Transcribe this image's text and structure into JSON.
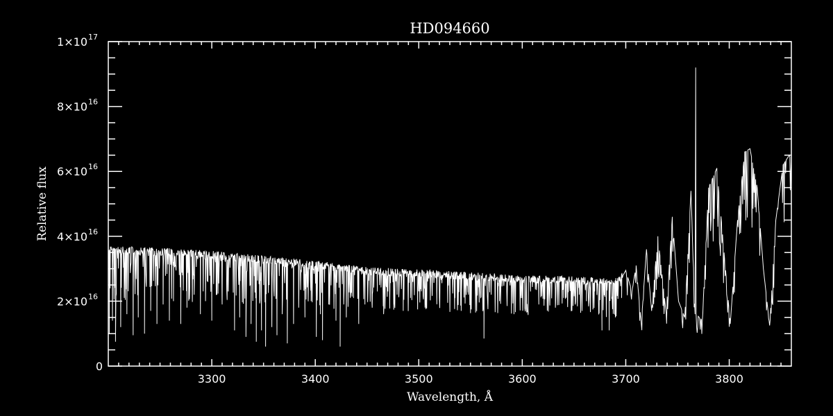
{
  "chart_data": {
    "type": "line",
    "title": "HD094660",
    "xlabel": "Wavelength, Å",
    "ylabel": "Relative flux",
    "xlim": [
      3200,
      3860
    ],
    "ylim": [
      0,
      1e+17
    ],
    "x_ticks": [
      3300,
      3400,
      3500,
      3600,
      3700,
      3800
    ],
    "x_tick_labels": [
      "3300",
      "3400",
      "3500",
      "3600",
      "3700",
      "3800"
    ],
    "y_ticks": [
      0,
      2e+16,
      4e+16,
      6e+16,
      8e+16,
      1e+17
    ],
    "y_tick_labels": [
      {
        "mant": "0",
        "exp": ""
      },
      {
        "mant": "2×10",
        "exp": "16"
      },
      {
        "mant": "4×10",
        "exp": "16"
      },
      {
        "mant": "6×10",
        "exp": "16"
      },
      {
        "mant": "8×10",
        "exp": "16"
      },
      {
        "mant": "1×10",
        "exp": "17"
      }
    ],
    "grid": false,
    "colors": {
      "background": "#000000",
      "line": "#ffffff",
      "axes": "#ffffff"
    },
    "flux_unit": 1e+16,
    "envelope": [
      [
        3200,
        3.7
      ],
      [
        3250,
        3.65
      ],
      [
        3300,
        3.55
      ],
      [
        3350,
        3.4
      ],
      [
        3400,
        3.25
      ],
      [
        3450,
        3.05
      ],
      [
        3500,
        2.98
      ],
      [
        3550,
        2.9
      ],
      [
        3600,
        2.8
      ],
      [
        3650,
        2.78
      ],
      [
        3688,
        2.7
      ],
      [
        3700,
        2.95
      ],
      [
        3706,
        2.3
      ],
      [
        3710,
        3.1
      ],
      [
        3715,
        1.3
      ],
      [
        3720,
        3.6
      ],
      [
        3725,
        1.7
      ],
      [
        3731,
        4.0
      ],
      [
        3739,
        1.65
      ],
      [
        3745,
        4.6
      ],
      [
        3751,
        2.0
      ],
      [
        3757,
        1.5
      ],
      [
        3763,
        5.4
      ],
      [
        3767,
        1.6
      ],
      [
        3767.6,
        9.2
      ],
      [
        3768,
        1.6
      ],
      [
        3774,
        1.4
      ],
      [
        3780,
        5.5
      ],
      [
        3788,
        6.1
      ],
      [
        3795,
        3.5
      ],
      [
        3801,
        1.3
      ],
      [
        3808,
        4.5
      ],
      [
        3815,
        6.6
      ],
      [
        3820,
        6.7
      ],
      [
        3827,
        5.5
      ],
      [
        3833,
        3.0
      ],
      [
        3839,
        1.25
      ],
      [
        3845,
        4.5
      ],
      [
        3852,
        6.2
      ],
      [
        3858,
        6.5
      ],
      [
        3860,
        6.3
      ]
    ],
    "absorption_lines": [
      [
        3201,
        1.0
      ],
      [
        3204,
        1.4
      ],
      [
        3207,
        0.75
      ],
      [
        3212,
        1.2
      ],
      [
        3218,
        1.6
      ],
      [
        3224,
        0.95
      ],
      [
        3229,
        1.5
      ],
      [
        3235,
        1.0
      ],
      [
        3241,
        1.7
      ],
      [
        3247,
        1.3
      ],
      [
        3253,
        1.9
      ],
      [
        3259,
        1.4
      ],
      [
        3263,
        2.0
      ],
      [
        3270,
        1.3
      ],
      [
        3276,
        1.8
      ],
      [
        3283,
        2.2
      ],
      [
        3289,
        1.6
      ],
      [
        3294,
        2.0
      ],
      [
        3300,
        1.4
      ],
      [
        3305,
        2.2
      ],
      [
        3310,
        1.9
      ],
      [
        3316,
        2.3
      ],
      [
        3322,
        1.1
      ],
      [
        3327,
        1.5
      ],
      [
        3333,
        0.9
      ],
      [
        3338,
        1.3
      ],
      [
        3343,
        0.75
      ],
      [
        3348,
        1.1
      ],
      [
        3352,
        0.6
      ],
      [
        3358,
        1.2
      ],
      [
        3363,
        0.95
      ],
      [
        3368,
        1.6
      ],
      [
        3373,
        0.7
      ],
      [
        3379,
        1.3
      ],
      [
        3384,
        1.8
      ],
      [
        3390,
        1.5
      ],
      [
        3396,
        2.0
      ],
      [
        3401,
        0.9
      ],
      [
        3405,
        1.6
      ],
      [
        3407,
        0.8
      ],
      [
        3413,
        1.9
      ],
      [
        3420,
        1.4
      ],
      [
        3424,
        0.6
      ],
      [
        3430,
        1.5
      ],
      [
        3437,
        2.1
      ],
      [
        3442,
        1.3
      ],
      [
        3448,
        1.9
      ],
      [
        3455,
        1.8
      ],
      [
        3460,
        2.3
      ],
      [
        3466,
        1.6
      ],
      [
        3472,
        2.0
      ],
      [
        3479,
        2.2
      ],
      [
        3485,
        1.7
      ],
      [
        3492,
        2.1
      ],
      [
        3499,
        2.3
      ],
      [
        3506,
        1.8
      ],
      [
        3513,
        2.2
      ],
      [
        3520,
        2.0
      ],
      [
        3528,
        2.3
      ],
      [
        3535,
        2.1
      ],
      [
        3541,
        1.7
      ],
      [
        3548,
        2.2
      ],
      [
        3556,
        2.0
      ],
      [
        3563,
        0.85
      ],
      [
        3570,
        2.2
      ],
      [
        3578,
        2.0
      ],
      [
        3585,
        2.3
      ],
      [
        3592,
        1.6
      ],
      [
        3600,
        2.1
      ],
      [
        3608,
        2.3
      ],
      [
        3616,
        1.9
      ],
      [
        3624,
        2.2
      ],
      [
        3632,
        1.8
      ],
      [
        3640,
        2.1
      ],
      [
        3648,
        1.7
      ],
      [
        3655,
        2.2
      ],
      [
        3662,
        2.0
      ],
      [
        3670,
        2.3
      ],
      [
        3677,
        1.1
      ],
      [
        3684,
        1.1
      ],
      [
        3690,
        1.5
      ],
      [
        3696,
        2.1
      ]
    ]
  }
}
